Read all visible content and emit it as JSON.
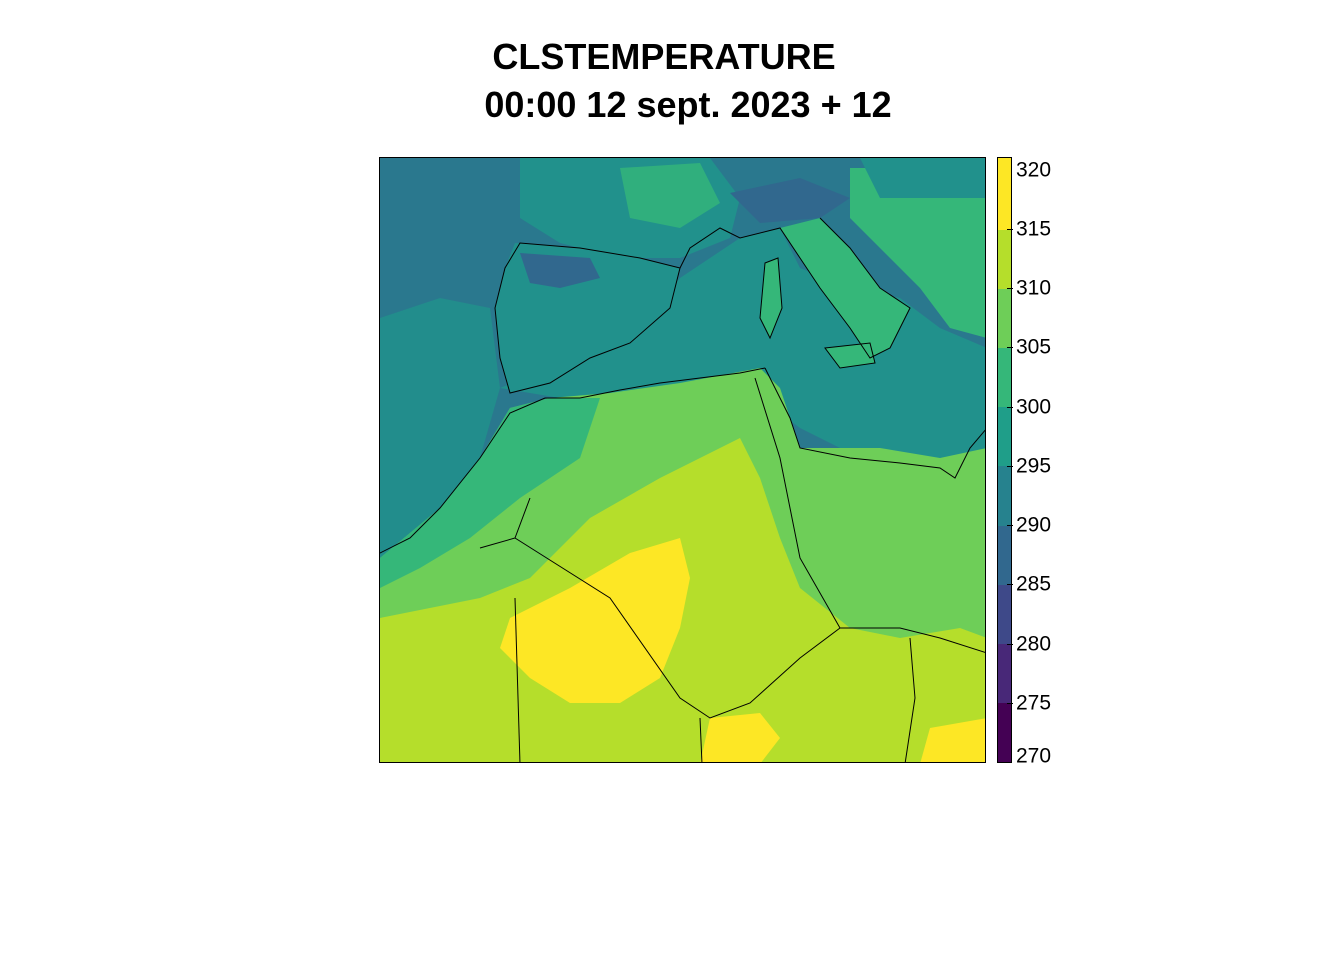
{
  "title": {
    "line1": "CLSTEMPERATURE",
    "line2": "00:00 12 sept. 2023 + 12"
  },
  "map": {
    "variable": "CLSTEMPERATURE",
    "region": "Western Mediterranean / North Africa",
    "regions": [
      {
        "name": "Atlantic Ocean",
        "level": 292.5,
        "color": "#2a788e"
      },
      {
        "name": "Mediterranean Sea",
        "level": 297.5,
        "color": "#21918c"
      },
      {
        "name": "Iberian Peninsula",
        "level": 297.5,
        "color": "#21918c"
      },
      {
        "name": "France",
        "level": 297.5,
        "color": "#21918c"
      },
      {
        "name": "Italy",
        "level": 302.5,
        "color": "#35b779"
      },
      {
        "name": "Balkans",
        "level": 302.5,
        "color": "#35b779"
      },
      {
        "name": "Northern Morocco / Atlas",
        "level": 302.5,
        "color": "#35b779"
      },
      {
        "name": "Northern Algeria / Tunisia",
        "level": 307.5,
        "color": "#6ece58"
      },
      {
        "name": "Libya",
        "level": 307.5,
        "color": "#6ece58"
      },
      {
        "name": "Sahara",
        "level": 312.5,
        "color": "#b5de2b"
      },
      {
        "name": "Central Algeria hot core",
        "level": 317.5,
        "color": "#fde725"
      },
      {
        "name": "Pyrenees / Alps peaks",
        "level": 287.5,
        "color": "#31688e"
      }
    ]
  },
  "colorbar": {
    "min": 270,
    "max": 321,
    "levels": [
      {
        "from": 270,
        "to": 275,
        "color": "#440154"
      },
      {
        "from": 275,
        "to": 280,
        "color": "#482878"
      },
      {
        "from": 280,
        "to": 285,
        "color": "#3e4989"
      },
      {
        "from": 285,
        "to": 290,
        "color": "#31688e"
      },
      {
        "from": 290,
        "to": 295,
        "color": "#26828e"
      },
      {
        "from": 295,
        "to": 300,
        "color": "#1f9e89"
      },
      {
        "from": 300,
        "to": 305,
        "color": "#35b779"
      },
      {
        "from": 305,
        "to": 310,
        "color": "#6ece58"
      },
      {
        "from": 310,
        "to": 315,
        "color": "#b5de2b"
      },
      {
        "from": 315,
        "to": 321,
        "color": "#fde725"
      }
    ],
    "ticks": [
      "270",
      "275",
      "280",
      "285",
      "290",
      "295",
      "300",
      "305",
      "310",
      "315",
      "320"
    ]
  }
}
